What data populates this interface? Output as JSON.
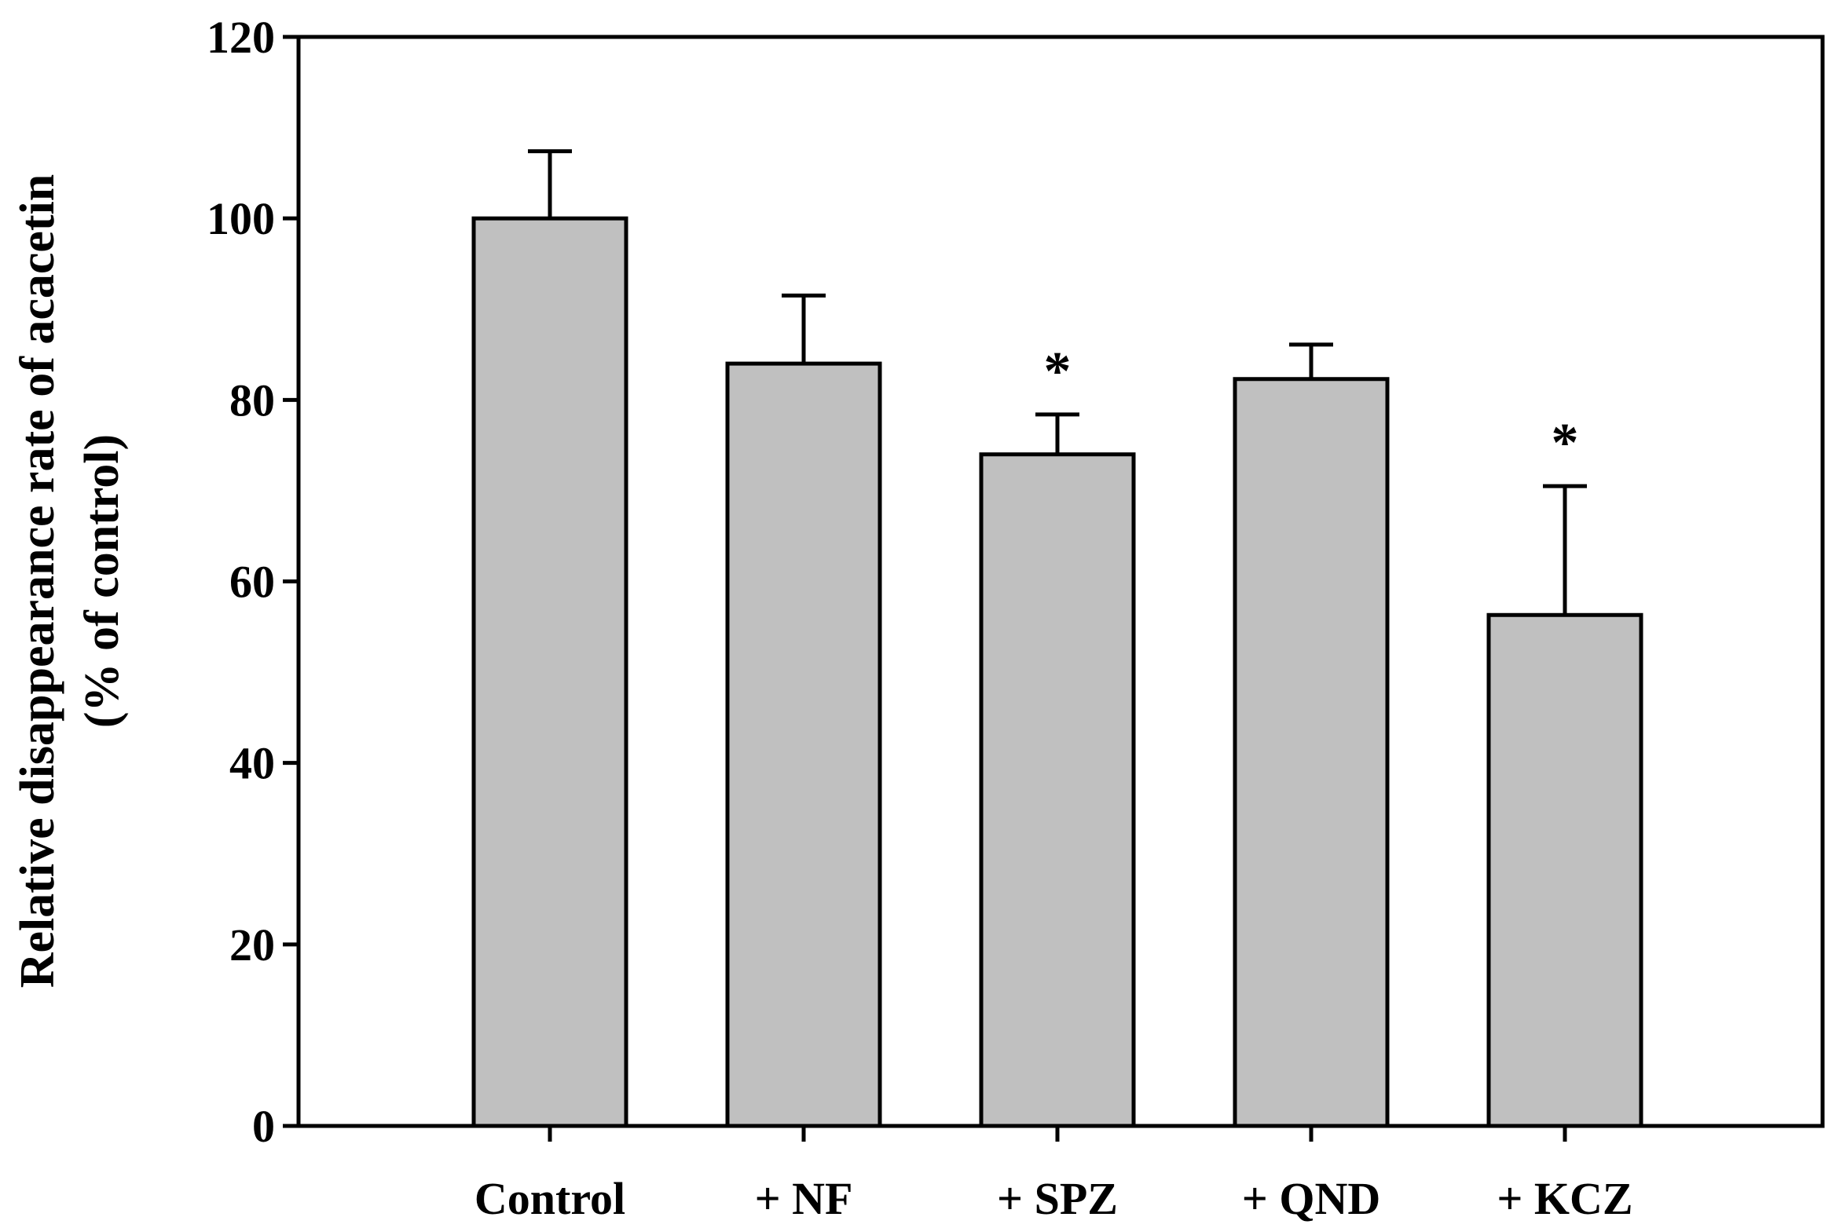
{
  "chart_data": {
    "type": "bar",
    "title": "",
    "xlabel": "",
    "ylabel": "Relative disappearance rate of acacetin",
    "ylabel_line2": "(% of control)",
    "ylim": [
      0,
      120
    ],
    "yticks": [
      0,
      20,
      40,
      60,
      80,
      100,
      120
    ],
    "yticks_labels": [
      "0",
      "20",
      "40",
      "60",
      "80",
      "100",
      "120"
    ],
    "categories": [
      "Control",
      "+ NF",
      "+ SPZ",
      "+ QND",
      "+ KCZ"
    ],
    "values": [
      100,
      84,
      74,
      82.3,
      56.3
    ],
    "errors": [
      7.4,
      7.5,
      4.4,
      3.8,
      14.2
    ],
    "significance": [
      "",
      "",
      "*",
      "",
      "*"
    ],
    "bar_color": "#c0c0c0",
    "edge_color": "#000000",
    "grid": false
  }
}
